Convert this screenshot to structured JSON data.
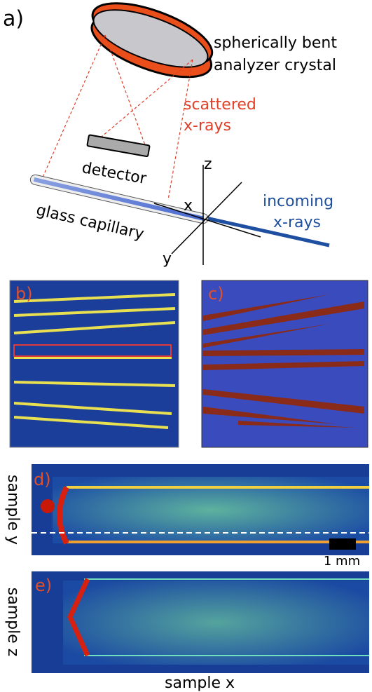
{
  "panel_a": {
    "label": "a)",
    "crystal_label_1": "spherically bent",
    "crystal_label_2": "analyzer crystal",
    "scattered_1": "scattered",
    "scattered_2": "x-rays",
    "detector": "detector",
    "capillary": "glass capillary",
    "incoming_1": "incoming",
    "incoming_2": "x-rays",
    "axis_z": "z",
    "axis_x": "x",
    "axis_y": "y"
  },
  "panel_b": {
    "label": "b)"
  },
  "panel_c": {
    "label": "c)"
  },
  "panel_d": {
    "label": "d)",
    "y_label": "sample y",
    "scale_bar": "1 mm"
  },
  "panel_e": {
    "label": "e)",
    "y_label": "sample z",
    "x_label": "sample x"
  }
}
